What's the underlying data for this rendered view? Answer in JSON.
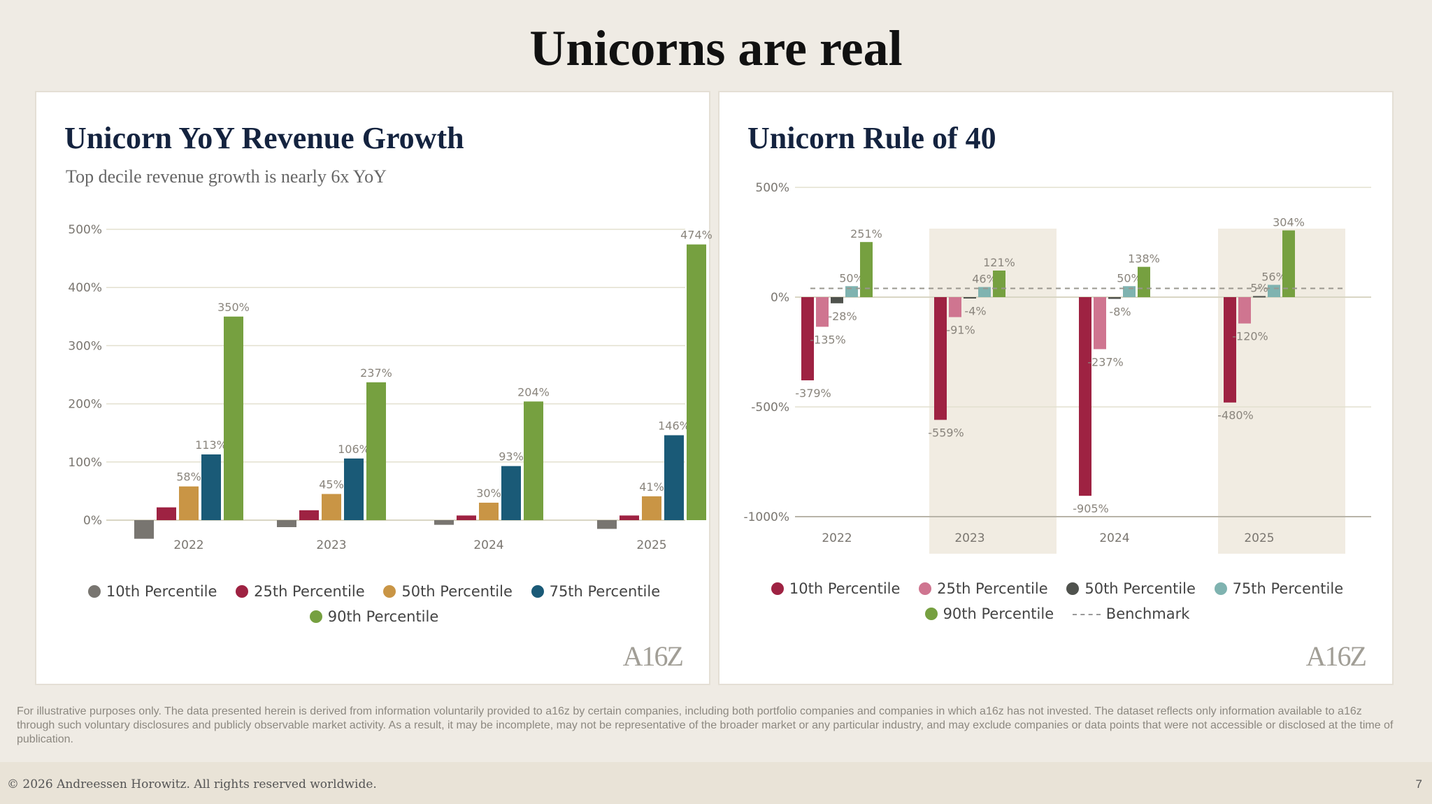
{
  "page": {
    "title": "Unicorns are real",
    "disclaimer": "For illustrative purposes only. The data presented herein is derived from information voluntarily provided to a16z by certain companies, including both portfolio companies and companies in which a16z has not invested. The dataset reflects only information available to a16z through such voluntary disclosures and publicly observable market activity. As a result, it may be incomplete, may not be representative of the broader market or any particular industry, and may exclude companies or data points that were not accessible or disclosed at the time of publication.",
    "copyright": "© 2026 Andreessen Horowitz. All rights reserved worldwide.",
    "page_number": "7",
    "logo": "A16Z"
  },
  "left_legend": [
    "10th Percentile",
    "25th Percentile",
    "50th Percentile",
    "75th Percentile",
    "90th Percentile"
  ],
  "right_legend": [
    "10th Percentile",
    "25th Percentile",
    "50th Percentile",
    "75th Percentile",
    "90th Percentile",
    "Benchmark"
  ],
  "chart_data": [
    {
      "type": "bar",
      "title": "Unicorn YoY Revenue Growth",
      "subtitle": "Top decile revenue growth is nearly 6x YoY",
      "categories": [
        "2022",
        "2023",
        "2024",
        "2025"
      ],
      "ylim": [
        -30,
        500
      ],
      "yticks": [
        0,
        100,
        200,
        300,
        400,
        500
      ],
      "ytick_labels": [
        "0%",
        "100%",
        "200%",
        "300%",
        "400%",
        "500%"
      ],
      "legend_position": "bottom",
      "series": [
        {
          "name": "10th Percentile",
          "color": "#787570",
          "values": [
            -32,
            -12,
            -8,
            -15
          ],
          "labels": [
            "",
            "",
            "",
            ""
          ]
        },
        {
          "name": "25th Percentile",
          "color": "#9e2242",
          "values": [
            22,
            17,
            8,
            8
          ],
          "labels": [
            "",
            "",
            "",
            ""
          ]
        },
        {
          "name": "50th Percentile",
          "color": "#c99545",
          "values": [
            58,
            45,
            30,
            41
          ],
          "labels": [
            "58%",
            "45%",
            "30%",
            "41%"
          ]
        },
        {
          "name": "75th Percentile",
          "color": "#1a5a77",
          "values": [
            113,
            106,
            93,
            146
          ],
          "labels": [
            "113%",
            "106%",
            "93%",
            "146%"
          ]
        },
        {
          "name": "90th Percentile",
          "color": "#76a040",
          "values": [
            350,
            237,
            204,
            474
          ],
          "labels": [
            "350%",
            "237%",
            "204%",
            "474%"
          ]
        }
      ]
    },
    {
      "type": "bar",
      "title": "Unicorn Rule of 40",
      "categories": [
        "2022",
        "2023",
        "2024",
        "2025"
      ],
      "ylim": [
        -1000,
        500
      ],
      "yticks": [
        -1000,
        -500,
        0,
        500
      ],
      "ytick_labels": [
        "-1000%",
        "-500%",
        "0%",
        "500%"
      ],
      "benchmark": 40,
      "highlighted_categories": [
        "2023",
        "2025"
      ],
      "legend_position": "bottom",
      "series": [
        {
          "name": "10th Percentile",
          "color": "#9e2242",
          "values": [
            -379,
            -559,
            -905,
            -480
          ],
          "labels": [
            "-379%",
            "-559%",
            "-905%",
            "-480%"
          ]
        },
        {
          "name": "25th Percentile",
          "color": "#cf7590",
          "values": [
            -135,
            -91,
            -237,
            -120
          ],
          "labels": [
            "-135%",
            "-91%",
            "-237%",
            "-120%"
          ]
        },
        {
          "name": "50th Percentile",
          "color": "#4f524d",
          "values": [
            -28,
            -4,
            -8,
            5
          ],
          "labels": [
            "-28%",
            "-4%",
            "-8%",
            "5%"
          ]
        },
        {
          "name": "75th Percentile",
          "color": "#7fb3b0",
          "values": [
            50,
            46,
            50,
            56
          ],
          "labels": [
            "50%",
            "46%",
            "50%",
            "56%"
          ]
        },
        {
          "name": "90th Percentile",
          "color": "#76a040",
          "values": [
            251,
            121,
            138,
            304
          ],
          "labels": [
            "251%",
            "121%",
            "138%",
            "304%"
          ]
        }
      ]
    }
  ]
}
